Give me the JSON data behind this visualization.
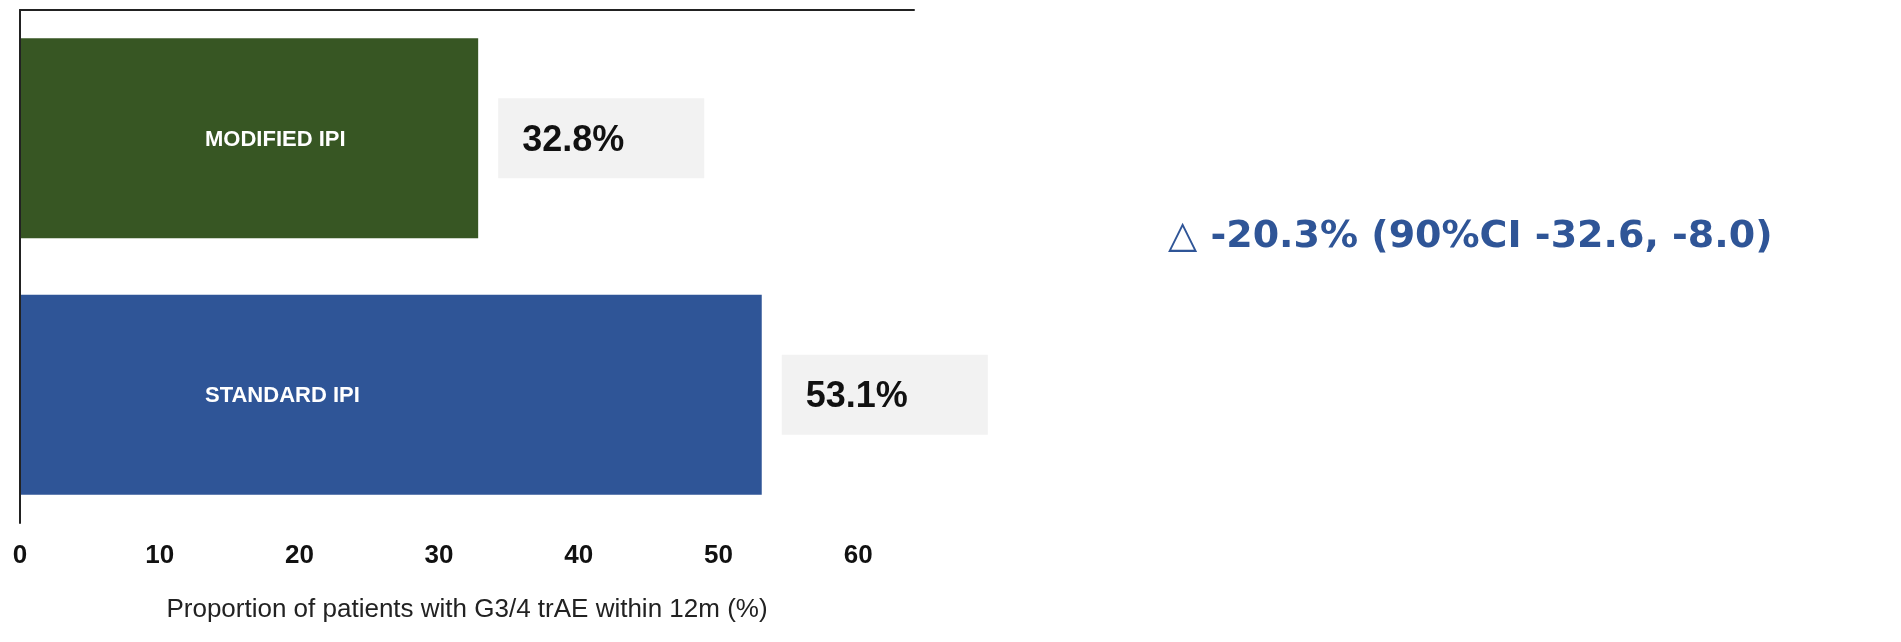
{
  "chart_data": {
    "type": "bar",
    "orientation": "horizontal",
    "xlabel": "Proportion of patients with G3/4 trAE within 12m (%)",
    "categories": [
      "MODIFIED IPI",
      "STANDARD IPI"
    ],
    "values": [
      32.8,
      53.1
    ],
    "colors": [
      "#375623",
      "#2f5597"
    ],
    "value_labels": [
      "32.8%",
      "53.1%"
    ],
    "xlim": [
      0,
      64
    ],
    "xticks": [
      0,
      10,
      20,
      30,
      40,
      50,
      60
    ],
    "grid": false,
    "annotations": [
      "△ -20.3% (90%CI -32.6, -8.0)"
    ]
  }
}
